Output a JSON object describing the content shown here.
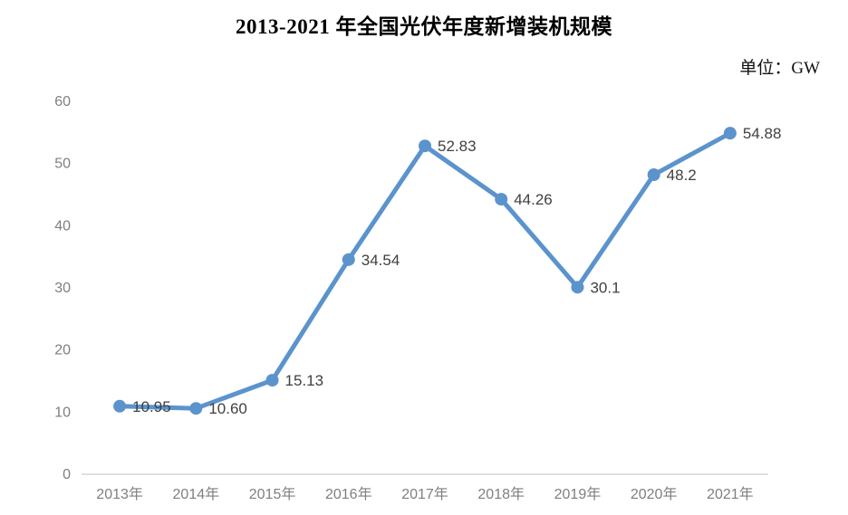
{
  "chart_data": {
    "type": "line",
    "title": "2013-2021 年全国光伏年度新增装机规模",
    "unit_label": "单位：GW",
    "categories": [
      "2013年",
      "2014年",
      "2015年",
      "2016年",
      "2017年",
      "2018年",
      "2019年",
      "2020年",
      "2021年"
    ],
    "values": [
      10.95,
      10.6,
      15.13,
      34.54,
      52.83,
      44.26,
      30.1,
      48.2,
      54.88
    ],
    "value_labels": [
      "10.95",
      "10.60",
      "15.13",
      "34.54",
      "52.83",
      "44.26",
      "30.1",
      "48.2",
      "54.88"
    ],
    "yticks": [
      0,
      10,
      20,
      30,
      40,
      50,
      60
    ],
    "ylim": [
      0,
      60
    ],
    "grid": false,
    "legend": "none",
    "marker": "circle",
    "colors": {
      "series": "#5B93CD",
      "axis_line": "#D6D6D6",
      "tick_text": "#7F7F7F",
      "data_label_text": "#404040"
    }
  }
}
